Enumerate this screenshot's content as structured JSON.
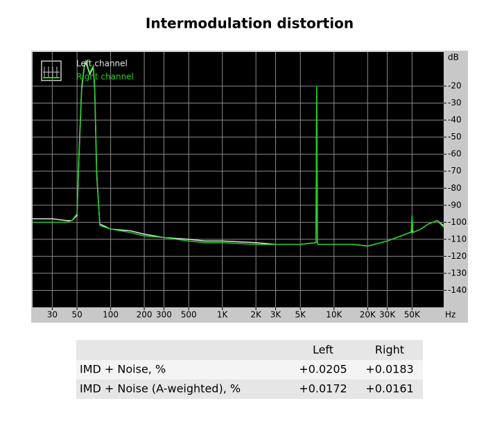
{
  "chart_data": {
    "type": "line",
    "title": "Intermodulation distortion",
    "y_label": "dB",
    "x_label": "Hz",
    "log_x": true,
    "grid": true,
    "legend": "top-left",
    "x": [
      20,
      30,
      40,
      45,
      50,
      52,
      55,
      58,
      60,
      65,
      70,
      72,
      75,
      80,
      100,
      150,
      200,
      300,
      500,
      700,
      1000,
      2000,
      3000,
      5000,
      6900,
      7000,
      7100,
      7200,
      8000,
      10000,
      15000,
      20000,
      30000,
      40000,
      48000,
      49000,
      50000,
      51000,
      60000,
      70000,
      84000,
      96000
    ],
    "series": [
      {
        "name": "Left channel",
        "color": "#e6e6e6",
        "values": [
          -98,
          -98,
          -99,
          -99,
          -96,
          -62,
          -22,
          -9,
          -6,
          -13,
          -9,
          -22,
          -72,
          -101,
          -104,
          -105,
          -107,
          -109,
          -110,
          -111,
          -111,
          -112,
          -113,
          -113,
          -112,
          -21,
          -112,
          -113,
          -113,
          -113,
          -113,
          -114,
          -111,
          -108,
          -106,
          -106,
          -105,
          -106,
          -104,
          -101,
          -99,
          -102
        ]
      },
      {
        "name": "Right channel",
        "color": "#22d022",
        "values": [
          -100,
          -100,
          -100,
          -99,
          -95,
          -60,
          -20,
          -8,
          -5,
          -12,
          -8,
          -20,
          -70,
          -102,
          -104,
          -106,
          -108,
          -109,
          -111,
          -112,
          -112,
          -113,
          -113,
          -113,
          -112,
          -20,
          -112,
          -113,
          -113,
          -113,
          -113,
          -114,
          -111,
          -108,
          -106,
          -106,
          -96,
          -106,
          -104,
          -101,
          -99,
          -103
        ]
      }
    ],
    "xlim": [
      20,
      96000
    ],
    "ylim": [
      -150,
      0
    ],
    "xticks": [
      30,
      50,
      100,
      200,
      300,
      500,
      {
        "value": 1000,
        "label": "1K"
      },
      {
        "value": 2000,
        "label": "2K"
      },
      {
        "value": 3000,
        "label": "3K"
      },
      {
        "value": 5000,
        "label": "5K"
      },
      {
        "value": 10000,
        "label": "10K"
      },
      {
        "value": 20000,
        "label": "20K"
      },
      {
        "value": 30000,
        "label": "30K"
      },
      {
        "value": 50000,
        "label": "50K"
      }
    ],
    "yticks": [
      -20,
      -30,
      -40,
      -50,
      -60,
      -70,
      -80,
      -90,
      -100,
      -110,
      -120,
      -130,
      -140
    ]
  },
  "table": {
    "columns": [
      "Left",
      "Right"
    ],
    "rows": [
      [
        "IMD + Noise, %",
        "+0.0205",
        "+0.0183"
      ],
      [
        "IMD + Noise (A-weighted), %",
        "+0.0172",
        "+0.0161"
      ]
    ]
  }
}
